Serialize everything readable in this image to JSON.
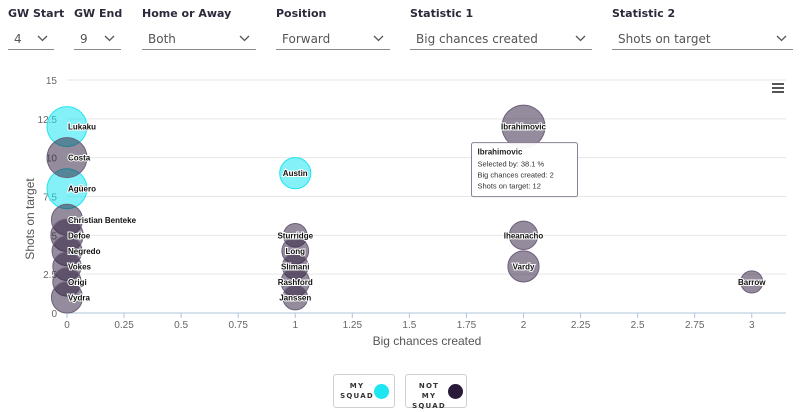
{
  "filters": [
    {
      "label": "GW Start",
      "value": "4"
    },
    {
      "label": "GW End",
      "value": "9"
    },
    {
      "label": "Home or Away",
      "value": "Both"
    },
    {
      "label": "Position",
      "value": "Forward"
    },
    {
      "label": "Statistic 1",
      "value": "Big chances created"
    },
    {
      "label": "Statistic 2",
      "value": "Shots on target"
    }
  ],
  "menu_icon": "hamburger-menu-icon",
  "colors": {
    "my_squad": "#1ee6f0",
    "not_my_squad": "#2a1a3a",
    "accent": "#00e5ff"
  },
  "chart_data": {
    "type": "scatter",
    "xlabel": "Big chances created",
    "ylabel": "Shots on target",
    "xlim": [
      0,
      3.15
    ],
    "ylim": [
      0,
      15
    ],
    "xticks": [
      "0",
      "0.25",
      "0.5",
      "0.75",
      "1",
      "1.25",
      "1.5",
      "1.75",
      "2",
      "2.25",
      "2.5",
      "2.75",
      "3"
    ],
    "yticks": [
      "0",
      "2.5",
      "5",
      "7.5",
      "10",
      "12.5",
      "15"
    ],
    "series": [
      {
        "name": "My squad",
        "points": [
          {
            "label": "Lukaku",
            "x": 0,
            "y": 12,
            "selected_by": 30
          },
          {
            "label": "Agüero",
            "x": 0,
            "y": 8,
            "selected_by": 30
          },
          {
            "label": "Austin",
            "x": 1,
            "y": 9,
            "selected_by": 12
          }
        ]
      },
      {
        "name": "Not my squad",
        "points": [
          {
            "label": "Costa",
            "x": 0,
            "y": 10,
            "selected_by": 30
          },
          {
            "label": "Christian Benteke",
            "x": 0,
            "y": 6,
            "selected_by": 12
          },
          {
            "label": "Defoe",
            "x": 0,
            "y": 5,
            "selected_by": 14
          },
          {
            "label": "Negredo",
            "x": 0,
            "y": 4,
            "selected_by": 10
          },
          {
            "label": "Vokes",
            "x": 0,
            "y": 3,
            "selected_by": 8
          },
          {
            "label": "Origi",
            "x": 0,
            "y": 2,
            "selected_by": 8
          },
          {
            "label": "Vydra",
            "x": 0,
            "y": 1,
            "selected_by": 12
          },
          {
            "label": "Ibrahimovic",
            "x": 2,
            "y": 12,
            "selected_by": 38.1
          },
          {
            "label": "Iheanacho",
            "x": 2,
            "y": 5,
            "selected_by": 8
          },
          {
            "label": "Vardy",
            "x": 2,
            "y": 3,
            "selected_by": 12
          },
          {
            "label": "Sturridge",
            "x": 1,
            "y": 5,
            "selected_by": 3
          },
          {
            "label": "Long",
            "x": 1,
            "y": 4,
            "selected_by": 6
          },
          {
            "label": "Slimani",
            "x": 1,
            "y": 3,
            "selected_by": 5
          },
          {
            "label": "Rashford",
            "x": 1,
            "y": 2,
            "selected_by": 8
          },
          {
            "label": "Janssen",
            "x": 1,
            "y": 1,
            "selected_by": 4
          },
          {
            "label": "Barrow",
            "x": 3,
            "y": 2,
            "selected_by": 2
          }
        ]
      }
    ],
    "tooltip": {
      "title": "Ibrahimovic",
      "lines": [
        "Selected by: 38.1 %",
        "Big chances created: 2",
        "Shots on target: 12"
      ]
    },
    "legend": {
      "placement": "bottom-center",
      "items": [
        {
          "line1": "MY",
          "line2": "SQUAD"
        },
        {
          "line1": "NOT MY",
          "line2": "SQUAD"
        }
      ]
    }
  }
}
